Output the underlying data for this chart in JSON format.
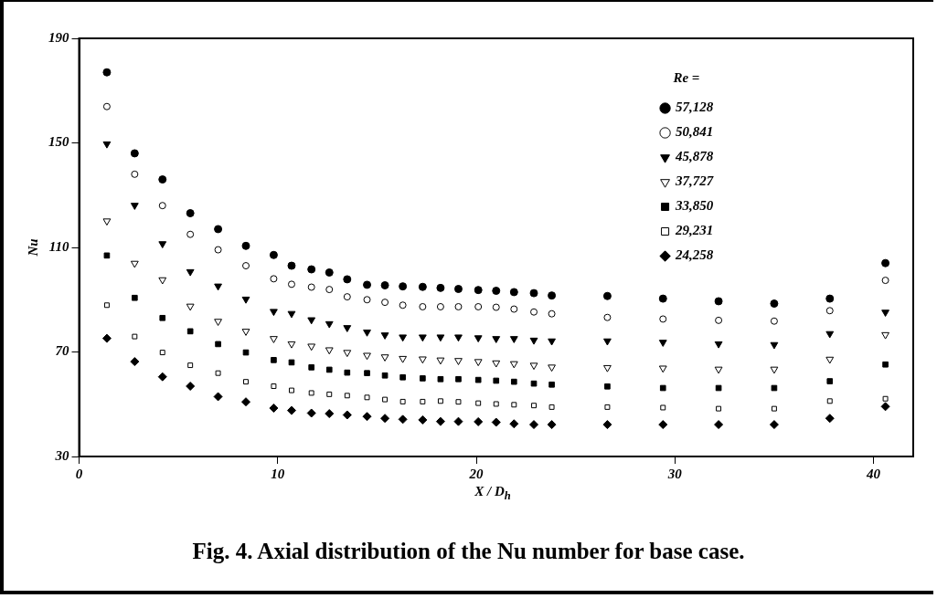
{
  "chart_data": {
    "type": "scatter",
    "title": "Fig. 4. Axial distribution of the Nu number for base case.",
    "xlabel": "X / D$_{h}$",
    "ylabel": "Nu",
    "legend_title": "Re =",
    "legend": "top right",
    "grid": false,
    "x": [
      1.4,
      2.8,
      4.2,
      5.6,
      7,
      8.4,
      9.8,
      10.7,
      11.7,
      12.6,
      13.5,
      14.5,
      15.4,
      16.3,
      17.3,
      18.2,
      19.1,
      20.1,
      21,
      21.9,
      22.9,
      23.8,
      26.6,
      29.4,
      32.2,
      35,
      37.8,
      40.6
    ],
    "xlim": [
      0,
      42
    ],
    "xticks": [
      0,
      10,
      20,
      30,
      40
    ],
    "ylim": [
      30,
      190
    ],
    "yticks": [
      30,
      70,
      110,
      150,
      190
    ],
    "series": [
      {
        "name": "57,128",
        "color": "#000000",
        "marker": "circle",
        "values": [
          177.0,
          146.0,
          136.0,
          123.1,
          117.0,
          110.6,
          107.1,
          103.0,
          101.6,
          100.4,
          97.8,
          95.7,
          95.5,
          95.1,
          94.9,
          94.5,
          94.1,
          93.7,
          93.4,
          92.9,
          92.5,
          91.6,
          91.4,
          90.4,
          89.4,
          88.5,
          90.4,
          104.0
        ]
      },
      {
        "name": "50,841",
        "color": "#000000",
        "marker": "circle-open",
        "values": [
          163.9,
          138.0,
          126.0,
          115.0,
          109.1,
          103.0,
          98.0,
          95.9,
          94.8,
          93.9,
          91.1,
          90.0,
          89.0,
          87.9,
          87.3,
          87.3,
          87.3,
          87.3,
          87.1,
          86.4,
          85.3,
          84.6,
          83.2,
          82.6,
          82.1,
          81.8,
          85.8,
          97.4
        ]
      },
      {
        "name": "45,878",
        "color": "#000000",
        "marker": "triangle-down",
        "values": [
          149.6,
          126.1,
          111.4,
          100.7,
          95.2,
          90.2,
          85.5,
          84.7,
          82.3,
          80.8,
          79.3,
          77.6,
          76.5,
          75.7,
          75.7,
          75.7,
          75.7,
          75.4,
          75.1,
          75.1,
          74.5,
          74.2,
          74.2,
          73.7,
          73.1,
          72.8,
          77.0,
          85.2
        ]
      },
      {
        "name": "37,727",
        "color": "#000000",
        "marker": "triangle-down-open",
        "values": [
          120.1,
          103.9,
          97.6,
          87.5,
          81.7,
          77.9,
          75.1,
          73.1,
          72.2,
          70.8,
          69.8,
          68.7,
          68.1,
          67.5,
          67.3,
          66.9,
          66.7,
          66.3,
          65.8,
          65.5,
          64.9,
          64.2,
          64.0,
          63.8,
          63.4,
          63.4,
          67.2,
          76.6
        ]
      },
      {
        "name": "33,850",
        "color": "#000000",
        "marker": "square",
        "values": [
          106.9,
          90.7,
          83.0,
          77.9,
          73.0,
          69.8,
          66.9,
          66.0,
          64.1,
          63.2,
          62.1,
          61.9,
          61.0,
          60.3,
          59.9,
          59.6,
          59.6,
          59.3,
          59.0,
          58.6,
          57.9,
          57.5,
          56.8,
          56.2,
          56.2,
          56.2,
          58.8,
          65.2
        ]
      },
      {
        "name": "29,231",
        "color": "#000000",
        "marker": "square-open",
        "values": [
          87.9,
          75.9,
          69.8,
          64.9,
          61.9,
          58.6,
          56.9,
          55.3,
          54.3,
          53.8,
          53.3,
          52.6,
          51.8,
          51.0,
          51.0,
          51.2,
          50.9,
          50.4,
          50.1,
          49.8,
          49.5,
          48.9,
          48.9,
          48.7,
          48.3,
          48.3,
          51.2,
          52.1
        ]
      },
      {
        "name": "24,258",
        "color": "#000000",
        "marker": "diamond",
        "values": [
          75.2,
          66.3,
          60.5,
          56.9,
          52.9,
          50.9,
          48.5,
          47.6,
          46.6,
          46.4,
          45.9,
          45.3,
          44.6,
          44.2,
          44.0,
          43.4,
          43.4,
          43.3,
          43.1,
          42.5,
          42.2,
          42.2,
          42.2,
          42.2,
          42.2,
          42.2,
          44.6,
          49.1
        ]
      }
    ]
  }
}
